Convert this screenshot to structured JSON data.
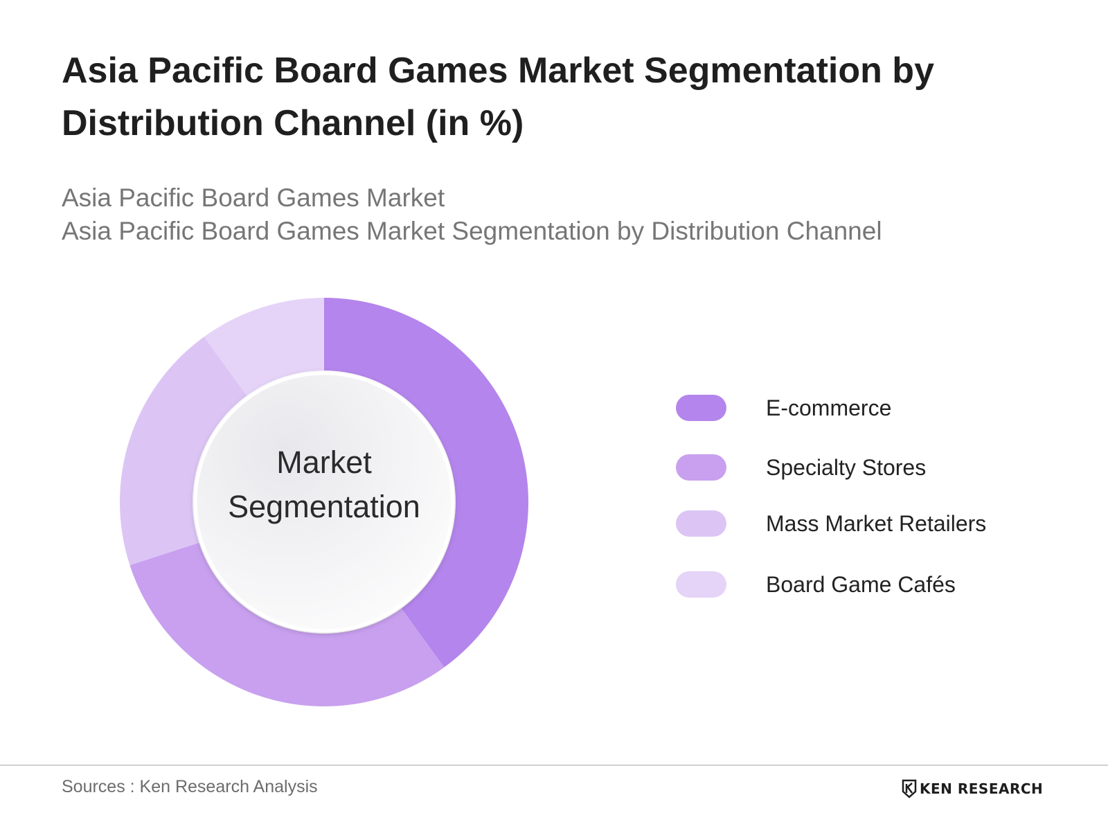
{
  "title": "Asia Pacific Board Games Market Segmentation by Distribution Channel (in %)",
  "subtitle_line1": "Asia Pacific Board Games Market",
  "subtitle_line2": "Asia Pacific Board Games Market Segmentation by Distribution Channel",
  "center_label_line1": "Market",
  "center_label_line2": "Segmentation",
  "source": "Sources : Ken Research Analysis",
  "brand": "KEN RESEARCH",
  "brand_icon": "ken-research-logo-icon",
  "chart_data": {
    "type": "pie",
    "donut": true,
    "categories": [
      "E-commerce",
      "Specialty Stores",
      "Mass Market Retailers",
      "Board Game Cafés"
    ],
    "values": [
      40,
      30,
      20,
      10
    ],
    "colors": [
      "#b485ec",
      "#c8a0ef",
      "#dcc5f5",
      "#e5d3f8"
    ],
    "legend": "right"
  }
}
